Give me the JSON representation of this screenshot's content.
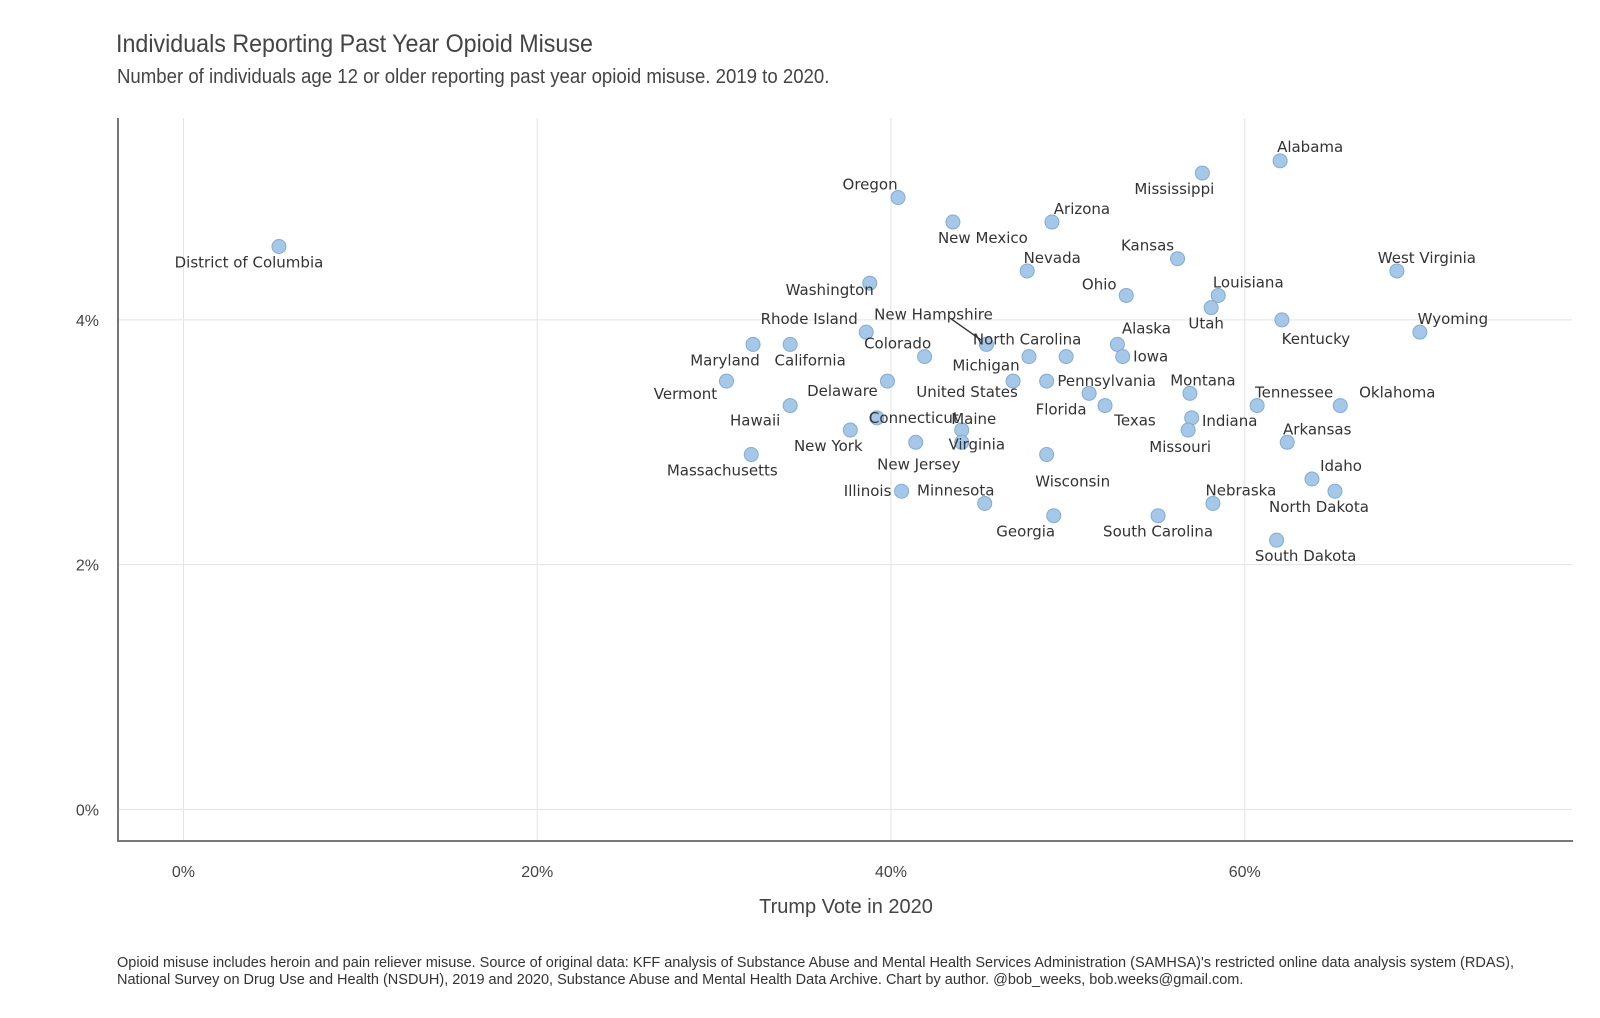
{
  "chart_data": {
    "type": "scatter",
    "title": "Individuals Reporting Past Year Opioid Misuse",
    "subtitle": "Number of individuals age 12 or older reporting past year opioid misuse. 2019 to 2020.",
    "xlabel": "Trump Vote in 2020",
    "ylabel": "",
    "xlim": [
      -3.7,
      78.5
    ],
    "ylim": [
      -0.25,
      5.65
    ],
    "x_ticks": [
      0,
      20,
      40,
      60
    ],
    "x_tick_labels": [
      "0%",
      "20%",
      "40%",
      "60%"
    ],
    "y_ticks": [
      0,
      2,
      4
    ],
    "y_tick_labels": [
      "0%",
      "2%",
      "4%"
    ],
    "grid": true,
    "legend": "none",
    "point_color": "#a6c8e8",
    "point_stroke": "#84abd2",
    "caption": "Opioid misuse includes heroin and pain reliever misuse. Source of original data: KFF analysis of Substance Abuse and Mental Health Services Administration (SAMHSA)'s restricted online data analysis system (RDAS), National Survey on Drug Use and Health (NSDUH), 2019 and 2020, Substance Abuse and Mental Health Data Archive. Chart by author. @bob_weeks, bob.weeks@gmail.com.",
    "points": [
      {
        "label": "Alabama",
        "x": 62.0,
        "y": 5.3
      },
      {
        "label": "Mississippi",
        "x": 57.6,
        "y": 5.2
      },
      {
        "label": "Oregon",
        "x": 40.4,
        "y": 5.0
      },
      {
        "label": "Arizona",
        "x": 49.1,
        "y": 4.8
      },
      {
        "label": "New Mexico",
        "x": 43.5,
        "y": 4.8
      },
      {
        "label": "District of Columbia",
        "x": 5.4,
        "y": 4.6
      },
      {
        "label": "Kansas",
        "x": 56.2,
        "y": 4.5
      },
      {
        "label": "Nevada",
        "x": 47.7,
        "y": 4.4
      },
      {
        "label": "West Virginia",
        "x": 68.6,
        "y": 4.4
      },
      {
        "label": "Washington",
        "x": 38.8,
        "y": 4.3
      },
      {
        "label": "Ohio",
        "x": 53.3,
        "y": 4.2
      },
      {
        "label": "Louisiana",
        "x": 58.5,
        "y": 4.2
      },
      {
        "label": "Utah",
        "x": 58.1,
        "y": 4.1
      },
      {
        "label": "Kentucky",
        "x": 62.1,
        "y": 4.0
      },
      {
        "label": "Wyoming",
        "x": 69.9,
        "y": 3.9
      },
      {
        "label": "Rhode Island",
        "x": 38.6,
        "y": 3.9
      },
      {
        "label": "New Hampshire",
        "x": 45.4,
        "y": 3.8
      },
      {
        "label": "Alaska",
        "x": 52.8,
        "y": 3.8
      },
      {
        "label": "Maryland",
        "x": 32.2,
        "y": 3.8
      },
      {
        "label": "California",
        "x": 34.3,
        "y": 3.8
      },
      {
        "label": "Colorado",
        "x": 41.9,
        "y": 3.7
      },
      {
        "label": "North Carolina",
        "x": 49.9,
        "y": 3.7
      },
      {
        "label": "Michigan",
        "x": 47.8,
        "y": 3.7
      },
      {
        "label": "Iowa",
        "x": 53.1,
        "y": 3.7
      },
      {
        "label": "Vermont",
        "x": 30.7,
        "y": 3.5
      },
      {
        "label": "Delaware",
        "x": 39.8,
        "y": 3.5
      },
      {
        "label": "United States",
        "x": 46.9,
        "y": 3.5
      },
      {
        "label": "Pennsylvania",
        "x": 48.8,
        "y": 3.5
      },
      {
        "label": "Montana",
        "x": 56.9,
        "y": 3.4
      },
      {
        "label": "Florida",
        "x": 51.2,
        "y": 3.4
      },
      {
        "label": "Texas",
        "x": 52.1,
        "y": 3.3
      },
      {
        "label": "Hawaii",
        "x": 34.3,
        "y": 3.3
      },
      {
        "label": "Tennessee",
        "x": 60.7,
        "y": 3.3
      },
      {
        "label": "Oklahoma",
        "x": 65.4,
        "y": 3.3
      },
      {
        "label": "Connecticut",
        "x": 39.2,
        "y": 3.2
      },
      {
        "label": "Indiana",
        "x": 57.0,
        "y": 3.2
      },
      {
        "label": "New York",
        "x": 37.7,
        "y": 3.1
      },
      {
        "label": "Maine",
        "x": 44.0,
        "y": 3.1
      },
      {
        "label": "Missouri",
        "x": 56.8,
        "y": 3.1
      },
      {
        "label": "Virginia",
        "x": 44.0,
        "y": 3.0
      },
      {
        "label": "New Jersey",
        "x": 41.4,
        "y": 3.0
      },
      {
        "label": "Arkansas",
        "x": 62.4,
        "y": 3.0
      },
      {
        "label": "Massachusetts",
        "x": 32.1,
        "y": 2.9
      },
      {
        "label": "Wisconsin",
        "x": 48.8,
        "y": 2.9
      },
      {
        "label": "Idaho",
        "x": 63.8,
        "y": 2.7
      },
      {
        "label": "Illinois",
        "x": 40.6,
        "y": 2.6
      },
      {
        "label": "North Dakota",
        "x": 65.1,
        "y": 2.6
      },
      {
        "label": "Minnesota",
        "x": 45.3,
        "y": 2.5
      },
      {
        "label": "Nebraska",
        "x": 58.2,
        "y": 2.5
      },
      {
        "label": "Georgia",
        "x": 49.2,
        "y": 2.4
      },
      {
        "label": "South Carolina",
        "x": 55.1,
        "y": 2.4
      },
      {
        "label": "South Dakota",
        "x": 61.8,
        "y": 2.2
      }
    ]
  }
}
